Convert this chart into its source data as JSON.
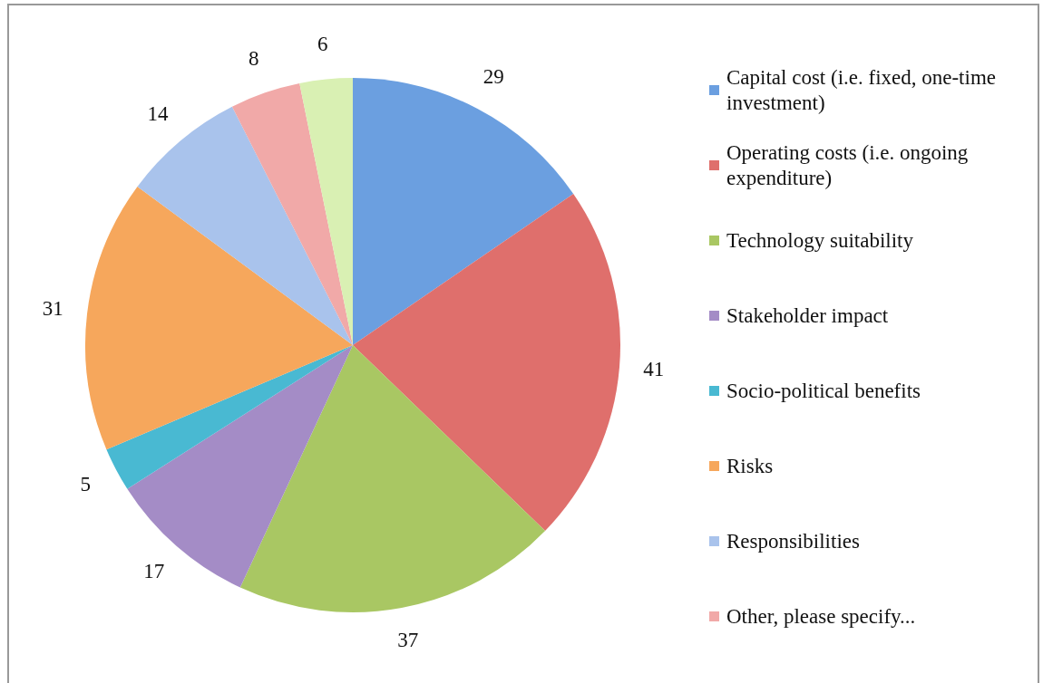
{
  "chart_data": {
    "type": "pie",
    "categories": [
      "Capital cost (i.e. fixed, one-time investment)",
      "Operating costs (i.e. ongoing expenditure)",
      "Technology suitability",
      "Stakeholder impact",
      "Socio-political benefits",
      "Risks",
      "Responsibilities",
      "Other, please specify...",
      null
    ],
    "values": [
      29,
      41,
      37,
      17,
      5,
      31,
      14,
      8,
      6
    ],
    "colors": [
      "#6b9fe0",
      "#df6f6c",
      "#a9c763",
      "#a48cc6",
      "#49b9d2",
      "#f6a75c",
      "#a9c3ec",
      "#f1a9a8",
      "#d9f0b3"
    ],
    "data_labels": true,
    "legend": "right"
  }
}
